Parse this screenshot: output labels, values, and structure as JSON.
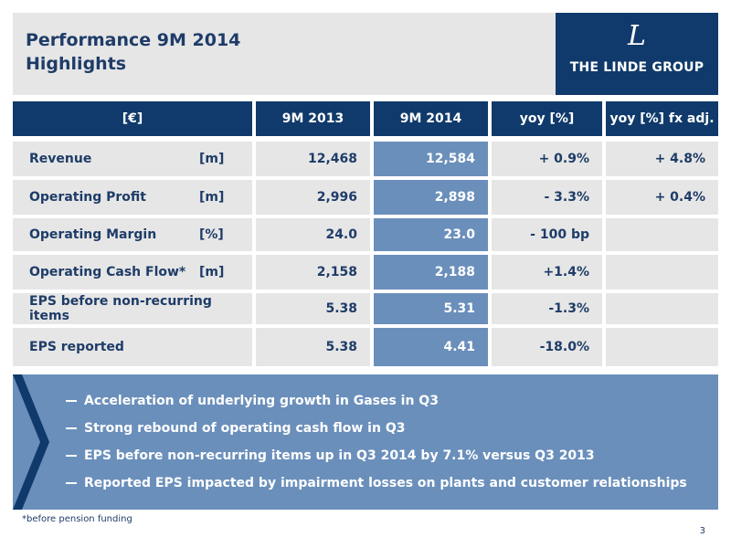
{
  "slide": {
    "title": "Performance 9M 2014",
    "subtitle": "Highlights",
    "logo_text": "THE LINDE GROUP",
    "logo_mark": "L",
    "footnote": "*before pension funding",
    "page_number": "3"
  },
  "table": {
    "headers": [
      "[€]",
      "9M 2013",
      "9M 2014",
      "yoy [%]",
      "yoy [%] fx adj."
    ],
    "rows": [
      {
        "label": "Revenue",
        "unit": "[m]",
        "v2013": "12,468",
        "v2014": "12,584",
        "yoy": "+ 0.9%",
        "fx": "+ 4.8%"
      },
      {
        "label": "Operating Profit",
        "unit": "[m]",
        "v2013": "2,996",
        "v2014": "2,898",
        "yoy": "- 3.3%",
        "fx": "+ 0.4%"
      },
      {
        "label": "Operating Margin",
        "unit": "[%]",
        "v2013": "24.0",
        "v2014": "23.0",
        "yoy": "- 100 bp",
        "fx": ""
      },
      {
        "label": "Operating Cash Flow*",
        "unit": "[m]",
        "v2013": "2,158",
        "v2014": "2,188",
        "yoy": "+1.4%",
        "fx": ""
      },
      {
        "label": "EPS before non-recurring items",
        "unit": "",
        "v2013": "5.38",
        "v2014": "5.31",
        "yoy": "-1.3%",
        "fx": ""
      },
      {
        "label": "EPS reported",
        "unit": "",
        "v2013": "5.38",
        "v2014": "4.41",
        "yoy": "-18.0%",
        "fx": ""
      }
    ]
  },
  "highlights": [
    "Acceleration of underlying growth in Gases in Q3",
    "Strong rebound of operating cash flow in Q3",
    "EPS before non-recurring items up in Q3 2014 by 7.1% versus Q3 2013",
    "Reported EPS impacted by impairment losses on plants and customer relationships"
  ],
  "colors": {
    "navy": "#103a6b",
    "steel_blue": "#6a8fbb",
    "light_gray": "#e6e6e6",
    "text_navy": "#1e3c68"
  }
}
